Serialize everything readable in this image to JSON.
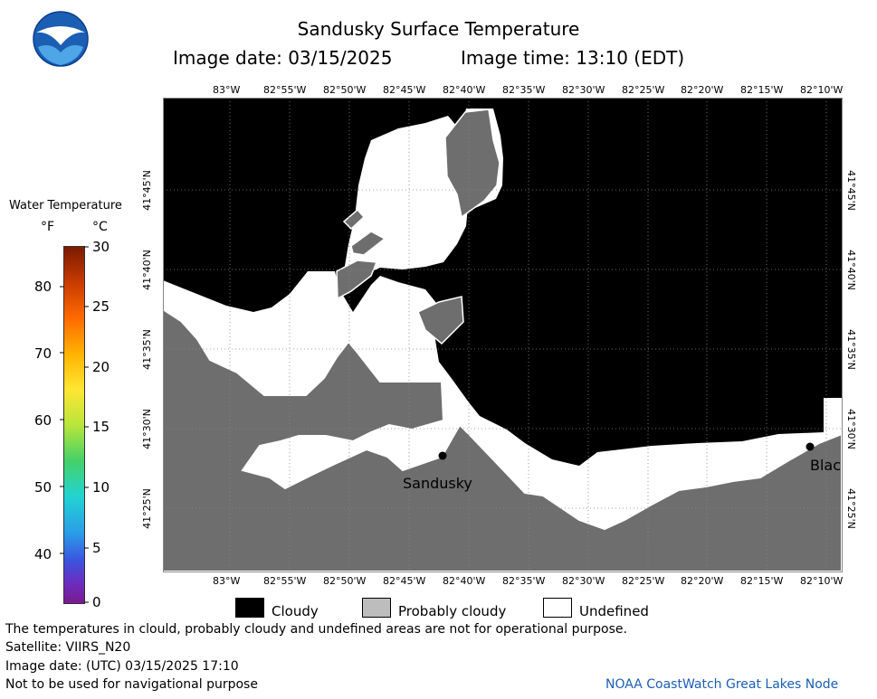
{
  "header": {
    "title": "Sandusky Surface Temperature",
    "image_date": "Image date: 03/15/2025",
    "image_time": "Image time: 13:10 (EDT)"
  },
  "colorbar": {
    "title": "Water Temperature",
    "unit_f": "°F",
    "unit_c": "°C",
    "f_ticks": [
      "80",
      "70",
      "60",
      "50",
      "40"
    ],
    "c_ticks": [
      "30",
      "25",
      "20",
      "15",
      "10",
      "5",
      "0"
    ]
  },
  "map": {
    "lon_labels": [
      "83°W",
      "82°55'W",
      "82°50'W",
      "82°45'W",
      "82°40'W",
      "82°35'W",
      "82°30'W",
      "82°25'W",
      "82°20'W",
      "82°15'W",
      "82°10'W"
    ],
    "lat_labels": [
      "41°45'N",
      "41°40'N",
      "41°35'N",
      "41°30'N",
      "41°25'N"
    ],
    "places": {
      "sandusky": "Sandusky",
      "blac": "Blac"
    },
    "colors": {
      "cloudy": "#000000",
      "probably_cloudy": "#6e6e6e",
      "undefined": "#ffffff"
    }
  },
  "legend": {
    "cloudy": "Cloudy",
    "probably_cloudy": "Probably cloudy",
    "undefined": "Undefined"
  },
  "footer": {
    "disclaimer": "The temperatures in clould, probably cloudy and undefined areas are not for operational purpose.",
    "satellite": "Satellite: VIIRS_N20",
    "utc_date": "Image date: (UTC) 03/15/2025  17:10",
    "nav_warning": "Not to be used for navigational purpose",
    "credit": "NOAA CoastWatch Great Lakes Node"
  },
  "logo": {
    "text": "NOAA"
  }
}
